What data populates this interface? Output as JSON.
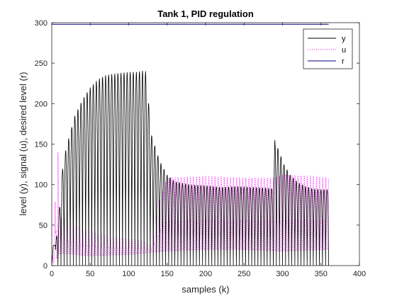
{
  "chart_data": {
    "type": "line",
    "title": "Tank 1, PID regulation",
    "xlabel": "samples (k)",
    "ylabel": "level (y), signal (u), desired level (r)",
    "xlim": [
      0,
      400
    ],
    "ylim": [
      0,
      300
    ],
    "xticks": [
      0,
      50,
      100,
      150,
      200,
      250,
      300,
      350,
      400
    ],
    "yticks": [
      0,
      50,
      100,
      150,
      200,
      250,
      300
    ],
    "grid": false,
    "legend_position": "top-right",
    "colors": {
      "y": "#000000",
      "u": "#ff00ff",
      "r": "#000080",
      "axes": "#262626"
    },
    "series": [
      {
        "name": "y",
        "style": "solid",
        "description_of_shape": "oscillates between ~0 and a peak envelope",
        "x_start": 0,
        "x_end": 360,
        "period": 4,
        "peak_envelope": [
          [
            0,
            25
          ],
          [
            5,
            25
          ],
          [
            10,
            70
          ],
          [
            15,
            130
          ],
          [
            20,
            150
          ],
          [
            30,
            185
          ],
          [
            40,
            205
          ],
          [
            50,
            220
          ],
          [
            60,
            230
          ],
          [
            70,
            235
          ],
          [
            80,
            237
          ],
          [
            90,
            238
          ],
          [
            100,
            239
          ],
          [
            110,
            239
          ],
          [
            120,
            241
          ],
          [
            122,
            240
          ],
          [
            126,
            200
          ],
          [
            130,
            160
          ],
          [
            140,
            130
          ],
          [
            150,
            112
          ],
          [
            160,
            104
          ],
          [
            170,
            102
          ],
          [
            180,
            100
          ],
          [
            200,
            99
          ],
          [
            220,
            97
          ],
          [
            240,
            98
          ],
          [
            260,
            97
          ],
          [
            280,
            96
          ],
          [
            288,
            95
          ],
          [
            290,
            155
          ],
          [
            296,
            140
          ],
          [
            302,
            125
          ],
          [
            310,
            112
          ],
          [
            320,
            103
          ],
          [
            330,
            98
          ],
          [
            340,
            95
          ],
          [
            350,
            94
          ],
          [
            360,
            94
          ]
        ]
      },
      {
        "name": "u",
        "style": "dotted",
        "x_start": 0,
        "x_end": 360,
        "period": 4,
        "peak_envelope": [
          [
            0,
            0
          ],
          [
            8,
            140
          ],
          [
            12,
            60
          ],
          [
            20,
            55
          ],
          [
            40,
            45
          ],
          [
            60,
            40
          ],
          [
            80,
            35
          ],
          [
            100,
            33
          ],
          [
            120,
            30
          ],
          [
            130,
            25
          ],
          [
            140,
            80
          ],
          [
            150,
            108
          ],
          [
            200,
            110
          ],
          [
            250,
            108
          ],
          [
            290,
            108
          ],
          [
            300,
            112
          ],
          [
            340,
            110
          ],
          [
            360,
            108
          ]
        ],
        "low_envelope": [
          [
            0,
            0
          ],
          [
            10,
            15
          ],
          [
            20,
            15
          ],
          [
            50,
            12
          ],
          [
            100,
            14
          ],
          [
            150,
            18
          ],
          [
            200,
            20
          ],
          [
            250,
            20
          ],
          [
            300,
            18
          ],
          [
            360,
            20
          ]
        ]
      },
      {
        "name": "r",
        "style": "solid",
        "x": [
          0,
          360
        ],
        "values": [
          298,
          298
        ]
      }
    ]
  }
}
